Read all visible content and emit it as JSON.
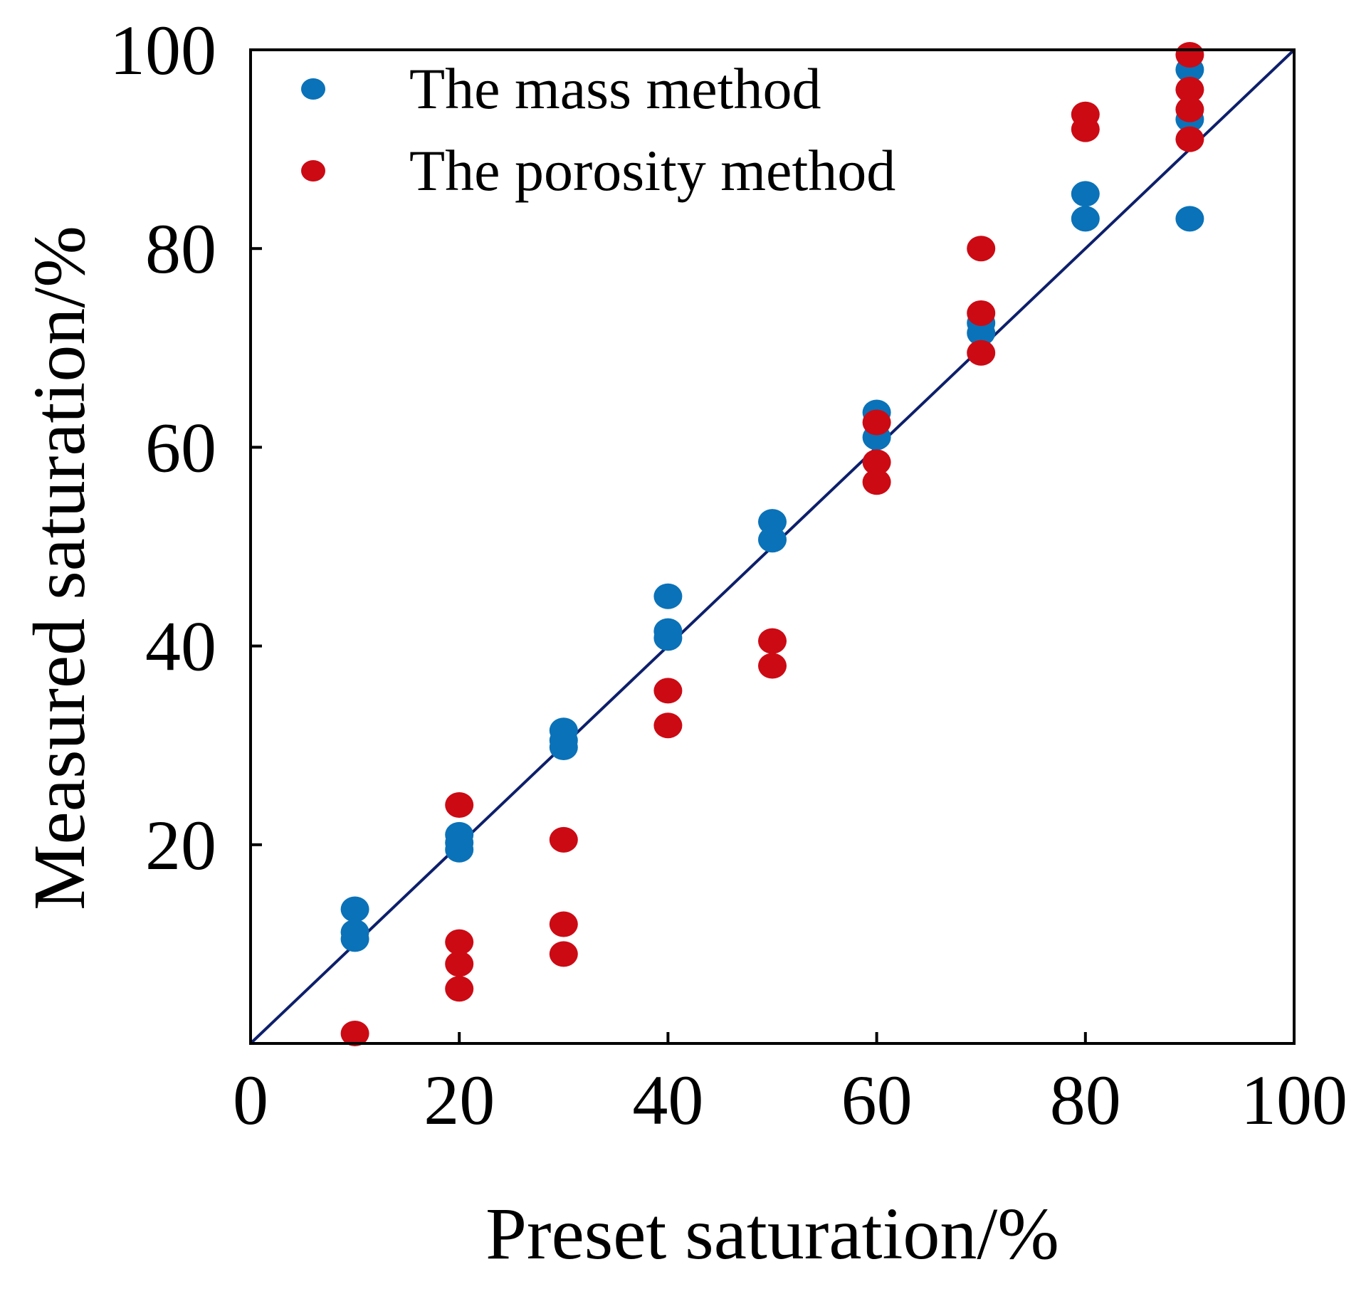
{
  "chart_data": {
    "type": "scatter",
    "title": "",
    "xlabel": "Preset saturation/%",
    "ylabel": "Measured saturation/%",
    "xlim": [
      0,
      100
    ],
    "ylim": [
      0,
      100
    ],
    "xticks": [
      0,
      20,
      40,
      60,
      80,
      100
    ],
    "yticks": [
      20,
      40,
      60,
      80,
      100
    ],
    "grid": false,
    "legend_position": "top-left",
    "reference_line": {
      "name": "y = x",
      "from": [
        0,
        0
      ],
      "to": [
        100,
        100
      ],
      "color": "#0d1f6b"
    },
    "series": [
      {
        "name": "The mass method",
        "color": "#0a72b8",
        "points": [
          [
            10,
            13.5
          ],
          [
            10,
            11.2
          ],
          [
            10,
            10.5
          ],
          [
            20,
            21.0
          ],
          [
            20,
            20.2
          ],
          [
            20,
            19.5
          ],
          [
            30,
            31.5
          ],
          [
            30,
            30.5
          ],
          [
            30,
            29.8
          ],
          [
            40,
            45.0
          ],
          [
            40,
            41.5
          ],
          [
            40,
            40.8
          ],
          [
            50,
            52.5
          ],
          [
            50,
            50.7
          ],
          [
            60,
            63.5
          ],
          [
            60,
            61.0
          ],
          [
            70,
            72.5
          ],
          [
            70,
            71.5
          ],
          [
            80,
            85.5
          ],
          [
            80,
            83.0
          ],
          [
            90,
            98.0
          ],
          [
            90,
            93.0
          ],
          [
            90,
            83.0
          ]
        ]
      },
      {
        "name": "The porosity method",
        "color": "#cc0a14",
        "points": [
          [
            10,
            1.0
          ],
          [
            20,
            24.0
          ],
          [
            20,
            10.2
          ],
          [
            20,
            8.0
          ],
          [
            20,
            5.5
          ],
          [
            30,
            20.5
          ],
          [
            30,
            12.0
          ],
          [
            30,
            9.0
          ],
          [
            40,
            35.5
          ],
          [
            40,
            32.0
          ],
          [
            50,
            40.5
          ],
          [
            50,
            38.0
          ],
          [
            60,
            62.5
          ],
          [
            60,
            58.5
          ],
          [
            60,
            56.5
          ],
          [
            70,
            80.0
          ],
          [
            70,
            73.5
          ],
          [
            70,
            69.5
          ],
          [
            80,
            93.5
          ],
          [
            80,
            92.0
          ],
          [
            90,
            99.5
          ],
          [
            90,
            96.0
          ],
          [
            90,
            94.0
          ],
          [
            90,
            91.0
          ]
        ]
      }
    ]
  }
}
